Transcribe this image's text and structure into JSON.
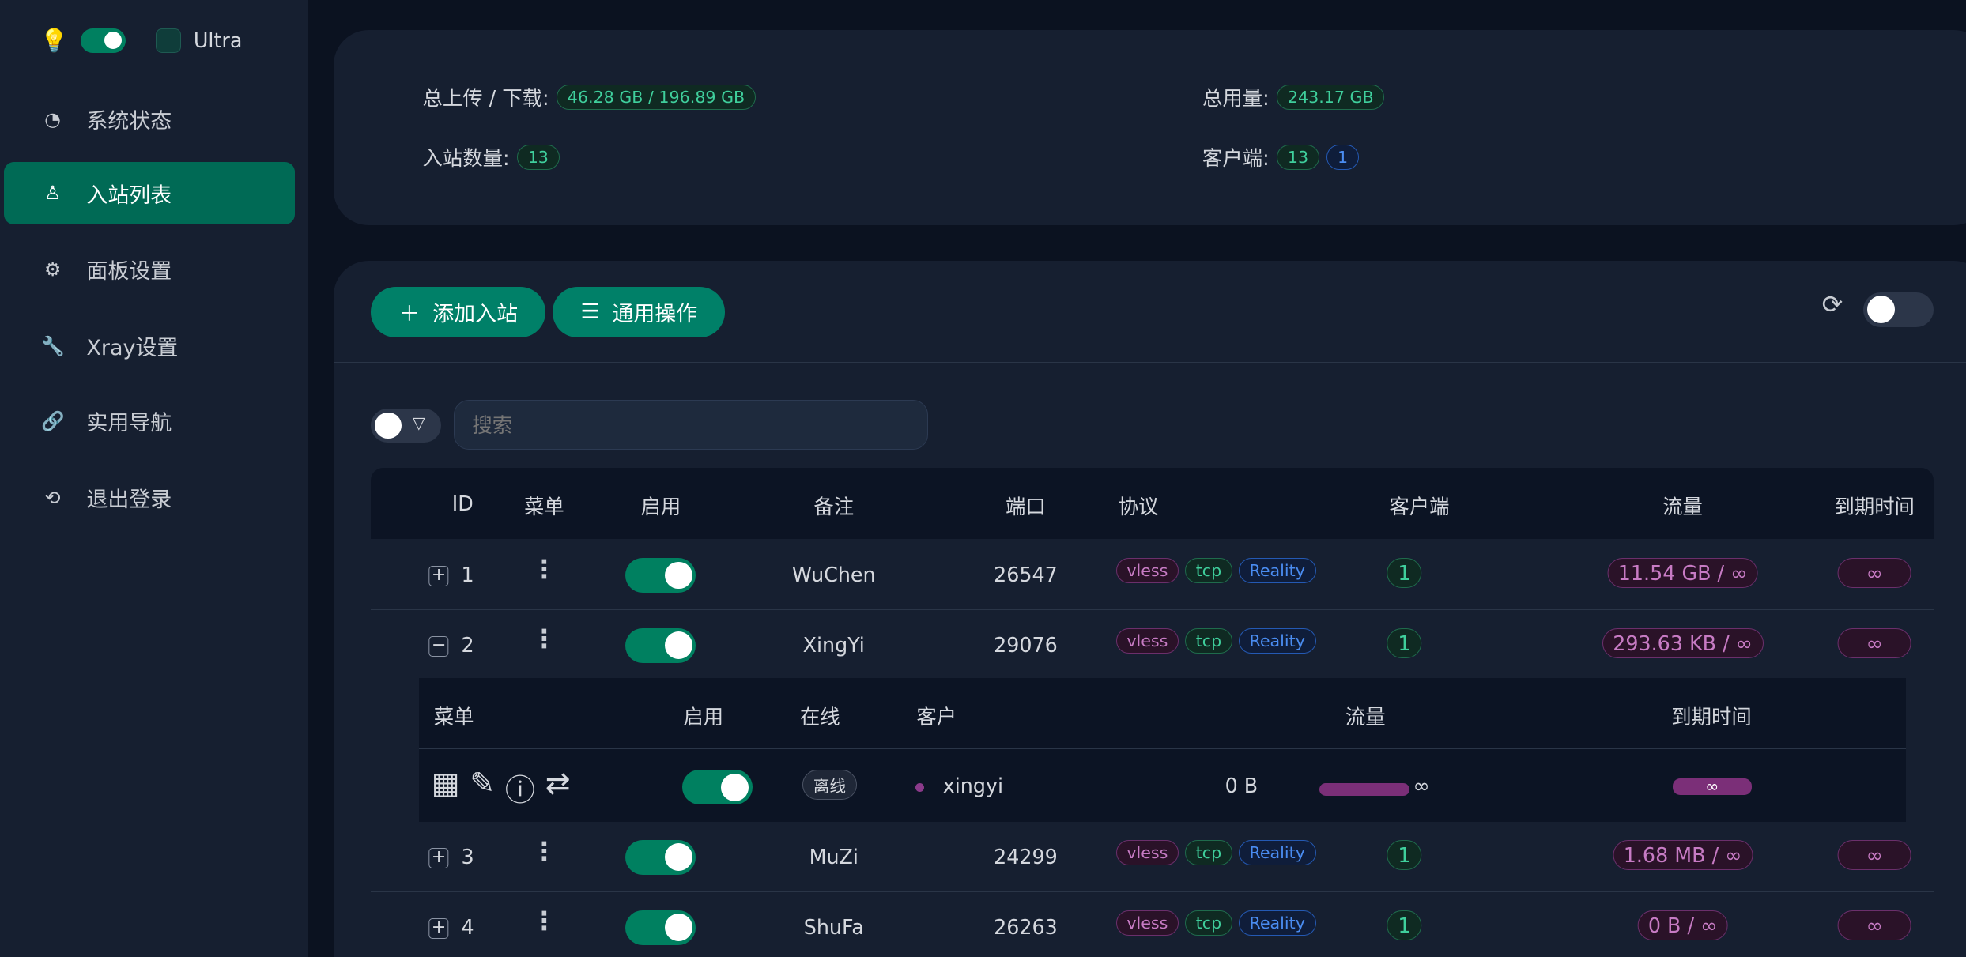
{
  "sidebar": {
    "theme_label": "Ultra",
    "items": [
      {
        "label": "系统状态",
        "icon": "dashboard-icon"
      },
      {
        "label": "入站列表",
        "icon": "user-icon",
        "active": true
      },
      {
        "label": "面板设置",
        "icon": "gear-icon"
      },
      {
        "label": "Xray设置",
        "icon": "wrench-icon"
      },
      {
        "label": "实用导航",
        "icon": "link-icon"
      },
      {
        "label": "退出登录",
        "icon": "logout-icon"
      }
    ]
  },
  "stats": {
    "updown_label": "总上传 / 下载:",
    "updown_value": "46.28 GB / 196.89 GB",
    "total_label": "总用量:",
    "total_value": "243.17 GB",
    "inbounds_label": "入站数量:",
    "inbounds_value": "13",
    "clients_label": "客户端:",
    "clients_value": "13",
    "clients_online": "1"
  },
  "toolbar": {
    "add_label": "添加入站",
    "general_label": "通用操作",
    "search_placeholder": "搜索"
  },
  "table": {
    "headers": [
      "ID",
      "菜单",
      "启用",
      "备注",
      "端口",
      "协议",
      "客户端",
      "流量",
      "到期时间"
    ],
    "rows": [
      {
        "id": "1",
        "remark": "WuChen",
        "port": "26547",
        "protocols": [
          "vless",
          "tcp",
          "Reality"
        ],
        "clients": "1",
        "traffic": "11.54 GB / ∞",
        "expiry": "∞",
        "expanded": false,
        "enabled": true
      },
      {
        "id": "2",
        "remark": "XingYi",
        "port": "29076",
        "protocols": [
          "vless",
          "tcp",
          "Reality"
        ],
        "clients": "1",
        "traffic": "293.63 KB / ∞",
        "expiry": "∞",
        "expanded": true,
        "enabled": true
      },
      {
        "id": "3",
        "remark": "MuZi",
        "port": "24299",
        "protocols": [
          "vless",
          "tcp",
          "Reality"
        ],
        "clients": "1",
        "traffic": "1.68 MB / ∞",
        "expiry": "∞",
        "expanded": false,
        "enabled": true
      },
      {
        "id": "4",
        "remark": "ShuFa",
        "port": "26263",
        "protocols": [
          "vless",
          "tcp",
          "Reality"
        ],
        "clients": "1",
        "traffic": "0 B / ∞",
        "expiry": "∞",
        "expanded": false,
        "enabled": true
      }
    ]
  },
  "subtable": {
    "headers": [
      "菜单",
      "启用",
      "在线",
      "客户",
      "流量",
      "到期时间"
    ],
    "client": {
      "name": "xingyi",
      "status": "离线",
      "traffic": "0 B",
      "limit": "∞",
      "expiry": "∞",
      "enabled": true
    }
  }
}
